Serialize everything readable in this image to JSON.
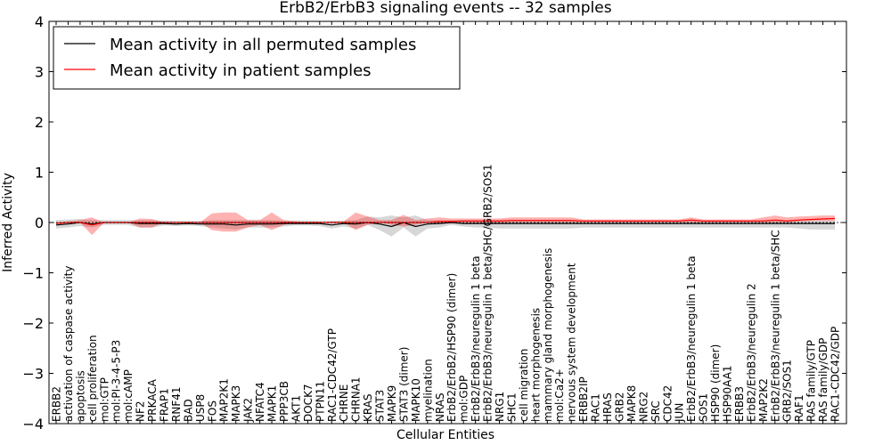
{
  "chart_data": {
    "type": "line",
    "title": "ErbB2/ErbB3 signaling events -- 32 samples",
    "xlabel": "Cellular Entities",
    "ylabel": "Inferred Activity",
    "ylim": [
      -4,
      4
    ],
    "yticks": [
      -4,
      -3,
      -2,
      -1,
      0,
      1,
      2,
      3,
      4
    ],
    "ytick_labels": [
      "−4",
      "−3",
      "−2",
      "−1",
      "0",
      "1",
      "2",
      "3",
      "4"
    ],
    "legend_position": "top-left",
    "colors": {
      "permuted": "#000000",
      "patient": "#ff0000",
      "permuted_band": "#b0b0b0",
      "patient_band": "#ff0000"
    },
    "categories": [
      "ERBB2",
      "activation of caspase activity",
      "apoptosis",
      "cell proliferation",
      "mol:GTP",
      "mol:PI-3-4-5-P3",
      "mol:cAMP",
      "NF2",
      "PRKACA",
      "FRAP1",
      "RNF41",
      "BAD",
      "USP8",
      "FOS",
      "MAP2K1",
      "MAPK3",
      "JAK2",
      "NFATC4",
      "MAPK1",
      "PPP3CB",
      "AKT1",
      "DOCK7",
      "PTPN11",
      "RAC1-CDC42/GTP",
      "CHRNE",
      "CHRNA1",
      "KRAS",
      "STAT3",
      "MAPK9",
      "STAT3 (dimer)",
      "MAPK10",
      "myelination",
      "NRAS",
      "ErbB2/ErbB2/HSP90 (dimer)",
      "mol:GDP",
      "ErbB2/ErbB3/neuregulin 1 beta",
      "ErbB2/ErbB3/neuregulin 1 beta/SHC/GRB2/SOS1",
      "NRG1",
      "SHC1",
      "cell migration",
      "heart morphogenesis",
      "mammary gland morphogenesis",
      "mol:Ca2+",
      "nervous system development",
      "ERBB2IP",
      "RAC1",
      "HRAS",
      "GRB2",
      "MAPK8",
      "NRG2",
      "SRC",
      "CDC42",
      "JUN",
      "ErbB2/ErbB3/neuregulin 1 beta",
      "SOS1",
      "HSP90 (dimer)",
      "HSP90AA1",
      "ERBB3",
      "ErbB2/ErbB3/neuregulin 2",
      "MAP2K2",
      "ErbB2/ErbB3/neuregulin 1 beta/SHC",
      "GRB2/SOS1",
      "RAF1",
      "RAS family/GTP",
      "RAS family/GDP",
      "RAC1-CDC42/GDP"
    ],
    "series": [
      {
        "name": "Mean activity in all permuted samples",
        "values": [
          -0.05,
          -0.03,
          0.0,
          -0.03,
          0.0,
          0.0,
          0.0,
          -0.02,
          -0.02,
          -0.02,
          -0.03,
          -0.02,
          -0.03,
          -0.03,
          -0.03,
          -0.05,
          -0.03,
          -0.03,
          -0.03,
          -0.02,
          -0.02,
          -0.02,
          -0.02,
          -0.05,
          -0.02,
          -0.03,
          0.0,
          -0.03,
          -0.08,
          0.0,
          -0.08,
          -0.03,
          -0.02,
          0.0,
          -0.02,
          -0.02,
          -0.02,
          -0.02,
          -0.02,
          -0.02,
          -0.02,
          -0.02,
          -0.02,
          -0.02,
          -0.02,
          -0.02,
          -0.02,
          -0.02,
          -0.02,
          -0.02,
          -0.02,
          -0.02,
          -0.02,
          -0.02,
          -0.02,
          -0.02,
          -0.02,
          -0.02,
          -0.02,
          -0.02,
          -0.02,
          -0.02,
          -0.02,
          -0.02,
          -0.02,
          -0.02
        ],
        "lower": [
          -0.12,
          -0.1,
          -0.07,
          -0.1,
          -0.05,
          -0.05,
          -0.05,
          -0.1,
          -0.1,
          -0.06,
          -0.07,
          -0.06,
          -0.07,
          -0.1,
          -0.12,
          -0.14,
          -0.1,
          -0.1,
          -0.1,
          -0.08,
          -0.06,
          -0.06,
          -0.07,
          -0.12,
          -0.08,
          -0.12,
          -0.05,
          -0.15,
          -0.28,
          -0.1,
          -0.28,
          -0.12,
          -0.1,
          -0.05,
          -0.08,
          -0.1,
          -0.1,
          -0.12,
          -0.12,
          -0.12,
          -0.12,
          -0.12,
          -0.12,
          -0.12,
          -0.1,
          -0.1,
          -0.1,
          -0.1,
          -0.1,
          -0.1,
          -0.1,
          -0.1,
          -0.1,
          -0.1,
          -0.1,
          -0.1,
          -0.1,
          -0.1,
          -0.1,
          -0.1,
          -0.1,
          -0.1,
          -0.12,
          -0.14,
          -0.14,
          -0.14
        ],
        "upper": [
          0.05,
          0.06,
          0.07,
          0.05,
          0.05,
          0.05,
          0.05,
          0.05,
          0.05,
          0.04,
          0.03,
          0.03,
          0.03,
          0.05,
          0.05,
          0.05,
          0.05,
          0.05,
          0.05,
          0.04,
          0.04,
          0.04,
          0.03,
          0.03,
          0.04,
          0.05,
          0.12,
          0.1,
          0.14,
          0.1,
          0.14,
          0.05,
          0.05,
          0.05,
          0.05,
          0.05,
          0.05,
          0.05,
          0.05,
          0.05,
          0.05,
          0.05,
          0.05,
          0.05,
          0.04,
          0.04,
          0.04,
          0.04,
          0.04,
          0.04,
          0.04,
          0.04,
          0.04,
          0.04,
          0.04,
          0.04,
          0.04,
          0.04,
          0.04,
          0.04,
          0.04,
          0.04,
          0.04,
          0.04,
          0.04,
          0.04
        ]
      },
      {
        "name": "Mean activity in patient samples",
        "values": [
          -0.02,
          0.0,
          0.0,
          -0.05,
          0.0,
          0.0,
          0.0,
          0.0,
          0.0,
          0.0,
          0.0,
          0.0,
          0.0,
          0.0,
          0.0,
          0.0,
          0.0,
          0.0,
          0.0,
          0.0,
          0.0,
          0.0,
          0.0,
          0.0,
          0.0,
          0.0,
          0.0,
          0.0,
          0.0,
          0.0,
          0.0,
          0.0,
          0.02,
          0.02,
          0.03,
          0.03,
          0.03,
          0.03,
          0.04,
          0.04,
          0.04,
          0.04,
          0.04,
          0.04,
          0.03,
          0.03,
          0.03,
          0.03,
          0.03,
          0.03,
          0.03,
          0.03,
          0.03,
          0.05,
          0.03,
          0.03,
          0.03,
          0.03,
          0.03,
          0.03,
          0.05,
          0.03,
          0.05,
          0.06,
          0.07,
          0.08
        ],
        "lower": [
          -0.02,
          0.0,
          0.0,
          -0.25,
          0.0,
          0.0,
          0.0,
          -0.1,
          -0.1,
          0.0,
          0.0,
          0.0,
          0.0,
          -0.15,
          -0.18,
          -0.18,
          -0.1,
          -0.05,
          -0.15,
          -0.05,
          0.0,
          0.0,
          0.0,
          0.0,
          0.0,
          -0.15,
          -0.05,
          0.0,
          -0.05,
          -0.08,
          -0.05,
          0.0,
          -0.02,
          -0.02,
          0.0,
          -0.02,
          -0.02,
          -0.02,
          0.0,
          0.0,
          0.0,
          0.0,
          0.0,
          0.0,
          0.0,
          0.0,
          0.0,
          0.0,
          0.0,
          0.0,
          0.0,
          0.0,
          0.0,
          0.0,
          0.0,
          0.0,
          0.0,
          0.0,
          0.0,
          0.0,
          0.0,
          0.0,
          0.02,
          0.03,
          0.03,
          0.03
        ],
        "upper": [
          0.0,
          0.02,
          0.05,
          0.1,
          0.0,
          0.0,
          0.0,
          0.08,
          0.07,
          0.0,
          0.0,
          0.0,
          0.0,
          0.18,
          0.2,
          0.2,
          0.05,
          0.05,
          0.2,
          0.05,
          0.02,
          0.0,
          0.0,
          0.02,
          0.02,
          0.2,
          0.12,
          0.05,
          0.05,
          0.15,
          0.05,
          0.08,
          0.1,
          0.08,
          0.08,
          0.08,
          0.08,
          0.08,
          0.1,
          0.1,
          0.1,
          0.1,
          0.1,
          0.1,
          0.06,
          0.06,
          0.06,
          0.06,
          0.06,
          0.06,
          0.06,
          0.06,
          0.06,
          0.1,
          0.06,
          0.06,
          0.06,
          0.06,
          0.06,
          0.1,
          0.14,
          0.1,
          0.12,
          0.13,
          0.14,
          0.14
        ]
      }
    ]
  }
}
